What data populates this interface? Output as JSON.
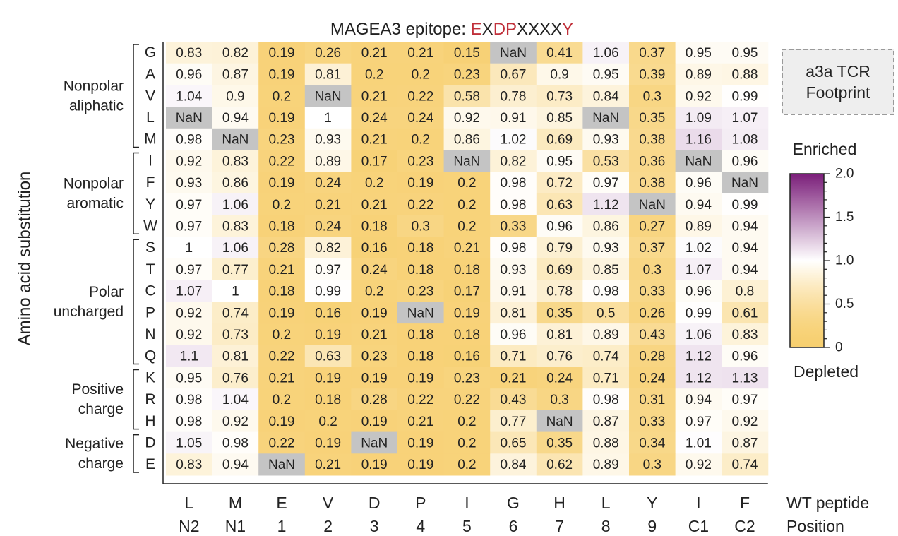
{
  "chart_data": {
    "type": "heatmap",
    "title": {
      "prefix": "MAGEA3 epitope: ",
      "motif": [
        {
          "ch": "E",
          "color": "#c0303a"
        },
        {
          "ch": "X",
          "color": "#222222"
        },
        {
          "ch": "D",
          "color": "#c0303a"
        },
        {
          "ch": "P",
          "color": "#c0303a"
        },
        {
          "ch": "X",
          "color": "#222222"
        },
        {
          "ch": "X",
          "color": "#222222"
        },
        {
          "ch": "X",
          "color": "#222222"
        },
        {
          "ch": "X",
          "color": "#222222"
        },
        {
          "ch": "Y",
          "color": "#c0303a"
        }
      ]
    },
    "ylabel": "Amino acid substitution",
    "wt_peptide_label": "WT peptide",
    "position_label": "Position",
    "wt_peptide": [
      "L",
      "M",
      "E",
      "V",
      "D",
      "P",
      "I",
      "G",
      "H",
      "L",
      "Y",
      "I",
      "F"
    ],
    "positions": [
      "N2",
      "N1",
      "1",
      "2",
      "3",
      "4",
      "5",
      "6",
      "7",
      "8",
      "9",
      "C1",
      "C2"
    ],
    "rows": [
      "G",
      "A",
      "V",
      "L",
      "M",
      "I",
      "F",
      "Y",
      "W",
      "S",
      "T",
      "C",
      "P",
      "N",
      "Q",
      "K",
      "R",
      "H",
      "D",
      "E"
    ],
    "groups": [
      {
        "lines": [
          "Nonpolar",
          "aliphatic"
        ],
        "start": 0,
        "end": 4
      },
      {
        "lines": [
          "Nonpolar",
          "aromatic"
        ],
        "start": 5,
        "end": 8
      },
      {
        "lines": [
          "Polar",
          "uncharged"
        ],
        "start": 9,
        "end": 14
      },
      {
        "lines": [
          "Positive",
          "charge"
        ],
        "start": 15,
        "end": 17
      },
      {
        "lines": [
          "Negative",
          "charge"
        ],
        "start": 18,
        "end": 19
      }
    ],
    "values": [
      [
        0.83,
        0.82,
        0.19,
        0.26,
        0.21,
        0.21,
        0.15,
        null,
        0.41,
        1.06,
        0.37,
        0.95,
        0.95
      ],
      [
        0.96,
        0.87,
        0.19,
        0.81,
        0.2,
        0.2,
        0.23,
        0.67,
        0.9,
        0.95,
        0.39,
        0.89,
        0.88
      ],
      [
        1.04,
        0.9,
        0.2,
        null,
        0.21,
        0.22,
        0.58,
        0.78,
        0.73,
        0.84,
        0.3,
        0.92,
        0.99
      ],
      [
        null,
        0.94,
        0.19,
        1,
        0.24,
        0.24,
        0.92,
        0.91,
        0.85,
        null,
        0.35,
        1.09,
        1.07
      ],
      [
        0.98,
        null,
        0.23,
        0.93,
        0.21,
        0.2,
        0.86,
        1.02,
        0.69,
        0.93,
        0.38,
        1.16,
        1.08
      ],
      [
        0.92,
        0.83,
        0.22,
        0.89,
        0.17,
        0.23,
        null,
        0.82,
        0.95,
        0.53,
        0.36,
        null,
        0.96
      ],
      [
        0.93,
        0.86,
        0.19,
        0.24,
        0.2,
        0.19,
        0.2,
        0.98,
        0.72,
        0.97,
        0.38,
        0.96,
        null
      ],
      [
        0.97,
        1.06,
        0.2,
        0.21,
        0.21,
        0.22,
        0.2,
        0.98,
        0.63,
        1.12,
        null,
        0.94,
        0.99
      ],
      [
        0.97,
        0.83,
        0.18,
        0.24,
        0.18,
        0.3,
        0.2,
        0.33,
        0.96,
        0.86,
        0.27,
        0.89,
        0.94
      ],
      [
        1,
        1.06,
        0.28,
        0.82,
        0.16,
        0.18,
        0.21,
        0.98,
        0.79,
        0.93,
        0.37,
        1.02,
        0.94
      ],
      [
        0.97,
        0.77,
        0.21,
        0.97,
        0.24,
        0.18,
        0.18,
        0.93,
        0.69,
        0.85,
        0.3,
        1.07,
        0.94
      ],
      [
        1.07,
        1,
        0.18,
        0.99,
        0.2,
        0.23,
        0.17,
        0.91,
        0.78,
        0.98,
        0.33,
        0.96,
        0.8
      ],
      [
        0.92,
        0.74,
        0.19,
        0.16,
        0.19,
        null,
        0.19,
        0.81,
        0.35,
        0.5,
        0.26,
        0.99,
        0.61
      ],
      [
        0.92,
        0.73,
        0.2,
        0.19,
        0.21,
        0.18,
        0.18,
        0.96,
        0.81,
        0.89,
        0.43,
        1.06,
        0.83
      ],
      [
        1.1,
        0.81,
        0.22,
        0.63,
        0.23,
        0.18,
        0.16,
        0.71,
        0.76,
        0.74,
        0.28,
        1.12,
        0.96
      ],
      [
        0.95,
        0.76,
        0.21,
        0.19,
        0.19,
        0.19,
        0.23,
        0.21,
        0.24,
        0.71,
        0.24,
        1.12,
        1.13
      ],
      [
        0.98,
        1.04,
        0.2,
        0.18,
        0.28,
        0.22,
        0.22,
        0.43,
        0.3,
        0.98,
        0.31,
        0.94,
        0.97
      ],
      [
        0.98,
        0.92,
        0.19,
        0.2,
        0.19,
        0.21,
        0.2,
        0.77,
        null,
        0.87,
        0.33,
        0.97,
        0.92
      ],
      [
        1.05,
        0.98,
        0.22,
        0.19,
        null,
        0.19,
        0.2,
        0.65,
        0.35,
        0.88,
        0.34,
        1.01,
        0.87
      ],
      [
        0.83,
        0.94,
        null,
        0.21,
        0.19,
        0.19,
        0.2,
        0.84,
        0.62,
        0.89,
        0.3,
        0.92,
        0.74
      ]
    ],
    "nan_label": "NaN",
    "footprint_positions": [
      "1",
      "2",
      "3",
      "4",
      "5",
      "6",
      "7",
      "8",
      "9"
    ],
    "footprint_label": [
      "a3a TCR",
      "Footprint"
    ],
    "colorbar": {
      "min": 0,
      "max": 2.0,
      "ticks": [
        0,
        0.5,
        1.0,
        1.5,
        2.0
      ],
      "tick_labels": [
        "0",
        "0.5",
        "1.0",
        "1.5",
        "2.0"
      ],
      "top_label": "Enriched",
      "bottom_label": "Depleted",
      "colors": {
        "low": "#f7cf6f",
        "mid": "#ffffff",
        "high": "#7b1e7a",
        "nan": "#c4c4c4"
      }
    }
  }
}
